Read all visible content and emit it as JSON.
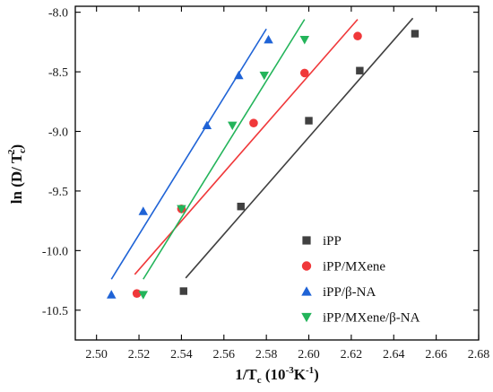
{
  "chart_data": {
    "type": "scatter",
    "xlabel": {
      "main": "1/T",
      "sub": "c",
      "unit": " (10",
      "unit_sup": "-3",
      "unit_tail": "K",
      "unit_sup2": "-1",
      "close": ")"
    },
    "ylabel": {
      "main": "ln (D/ T",
      "sub": "c",
      "sup": "2",
      "close": ")"
    },
    "xlim": [
      2.49,
      2.68
    ],
    "ylim": [
      -10.75,
      -7.95
    ],
    "xticks": [
      "2.50",
      "2.52",
      "2.54",
      "2.56",
      "2.58",
      "2.60",
      "2.62",
      "2.64",
      "2.66",
      "2.68"
    ],
    "yticks": [
      "-8.0",
      "-8.5",
      "-9.0",
      "-9.5",
      "-10.0",
      "-10.5"
    ],
    "grid": false,
    "legend_position": "bottom-right",
    "series": [
      {
        "name": "iPP",
        "marker": "square",
        "color": "#404040",
        "x": [
          2.541,
          2.568,
          2.6,
          2.624,
          2.65
        ],
        "y": [
          -10.34,
          -9.63,
          -8.91,
          -8.49,
          -8.18
        ],
        "fit": [
          [
            2.542,
            -10.23
          ],
          [
            2.649,
            -8.05
          ]
        ]
      },
      {
        "name": "iPP/MXene",
        "marker": "circle",
        "color": "#f0383a",
        "x": [
          2.519,
          2.54,
          2.574,
          2.598,
          2.623
        ],
        "y": [
          -10.36,
          -9.65,
          -8.93,
          -8.51,
          -8.2
        ],
        "fit": [
          [
            2.518,
            -10.2
          ],
          [
            2.623,
            -8.06
          ]
        ]
      },
      {
        "name": "iPP/β-NA",
        "marker": "triangle-up",
        "color": "#1f63d6",
        "x": [
          2.507,
          2.522,
          2.552,
          2.567,
          2.581
        ],
        "y": [
          -10.37,
          -9.67,
          -8.95,
          -8.53,
          -8.23
        ],
        "fit": [
          [
            2.507,
            -10.24
          ],
          [
            2.58,
            -8.14
          ]
        ]
      },
      {
        "name": "iPP/MXene/β-NA",
        "marker": "triangle-down",
        "color": "#23b45a",
        "x": [
          2.522,
          2.54,
          2.564,
          2.579,
          2.598
        ],
        "y": [
          -10.37,
          -9.65,
          -8.95,
          -8.53,
          -8.23
        ],
        "fit": [
          [
            2.522,
            -10.24
          ],
          [
            2.598,
            -8.06
          ]
        ]
      }
    ]
  }
}
